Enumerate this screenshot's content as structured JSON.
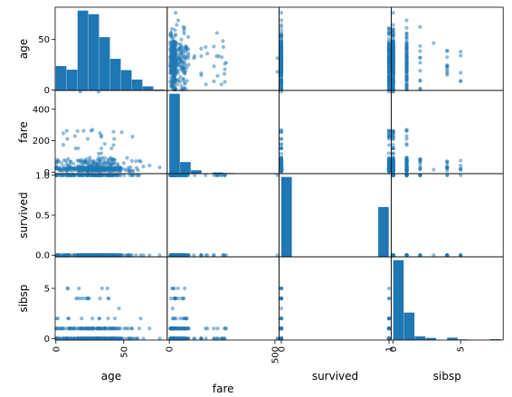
{
  "chart_data": {
    "type": "scatter",
    "title": "",
    "variables": [
      "age",
      "fare",
      "survived",
      "sibsp"
    ],
    "ranges": {
      "age": [
        -0.5,
        82
      ],
      "fare": [
        -10,
        520
      ],
      "survived": [
        -0.02,
        1.02
      ],
      "sibsp": [
        -0.15,
        8.15
      ]
    },
    "tick_labels": {
      "age": {
        "left": [
          "0",
          "50"
        ],
        "bottom": [
          "0",
          "50"
        ]
      },
      "fare": {
        "left": [
          "0",
          "200",
          "400"
        ],
        "bottom": [
          "0",
          "500"
        ]
      },
      "survived": {
        "left": [
          "0.0",
          "0.5",
          "1.0"
        ],
        "bottom": [
          "0",
          "1"
        ]
      },
      "sibsp": {
        "left": [
          "0",
          "5"
        ],
        "bottom": [
          "0",
          "5"
        ]
      }
    },
    "axis_labels": {
      "age": "age",
      "fare": "fare",
      "survived": "survived",
      "sibsp": "sibsp"
    },
    "point_color": "#1f77b4",
    "point_alpha": 0.5,
    "histograms": {
      "age": {
        "bins": [
          0,
          8,
          16,
          24,
          32,
          40,
          48,
          56,
          64,
          72,
          80
        ],
        "counts": [
          54,
          46,
          177,
          169,
          118,
          70,
          45,
          24,
          9,
          2
        ]
      },
      "fare": {
        "bins": [
          0,
          51.2,
          102.5,
          153.7,
          204.9,
          256.2,
          307.4,
          358.6,
          409.9,
          461.1,
          512.3
        ],
        "counts": [
          732,
          106,
          31,
          2,
          11,
          6,
          0,
          0,
          0,
          3
        ]
      },
      "survived": {
        "bins": [
          0,
          0.1,
          0.2,
          0.3,
          0.4,
          0.5,
          0.6,
          0.7,
          0.8,
          0.9,
          1.0
        ],
        "counts": [
          549,
          0,
          0,
          0,
          0,
          0,
          0,
          0,
          0,
          342
        ]
      },
      "sibsp": {
        "bins": [
          0,
          0.8,
          1.6,
          2.4,
          3.2,
          4.0,
          4.8,
          5.6,
          6.4,
          7.2,
          8.0
        ],
        "counts": [
          608,
          209,
          28,
          16,
          0,
          18,
          5,
          0,
          0,
          7
        ]
      }
    }
  }
}
